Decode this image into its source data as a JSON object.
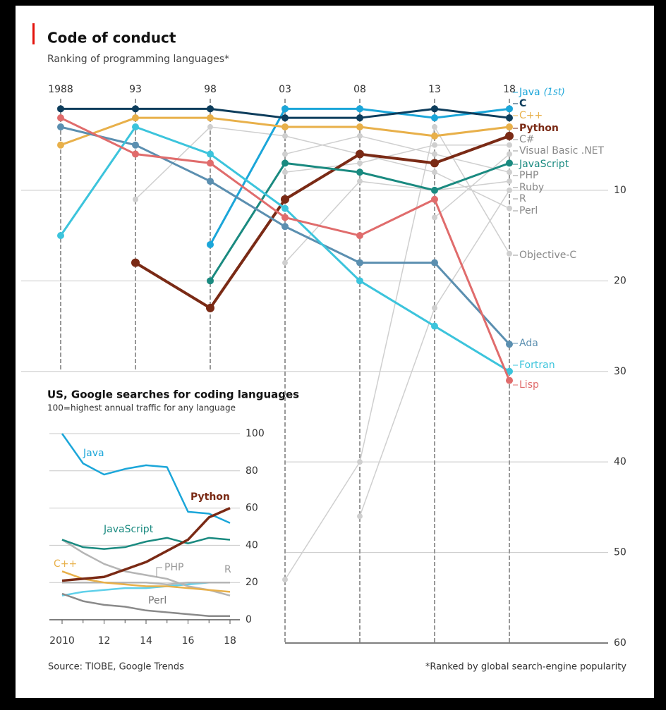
{
  "chart_data": [
    {
      "type": "line",
      "title": "Code of conduct",
      "subtitle": "Ranking of programming languages*",
      "categories": [
        "1988",
        "93",
        "98",
        "03",
        "08",
        "13",
        "18"
      ],
      "ylim": [
        0,
        60
      ],
      "y_inverted": true,
      "yticks": [
        10,
        20,
        30,
        40,
        50,
        60
      ],
      "grid": true,
      "annotations": [
        {
          "text": "(1st)"
        }
      ],
      "series": [
        {
          "name": "Java",
          "color": "#1ba6d9",
          "values": [
            null,
            null,
            16,
            1,
            1,
            2,
            1
          ]
        },
        {
          "name": "C",
          "color": "#0d3d5c",
          "values": [
            1,
            1,
            1,
            2,
            2,
            1,
            2
          ]
        },
        {
          "name": "C++",
          "color": "#e8b04a",
          "values": [
            5,
            2,
            2,
            3,
            3,
            4,
            3
          ]
        },
        {
          "name": "Python",
          "color": "#7a2a15",
          "values": [
            null,
            18,
            23,
            11,
            6,
            7,
            4
          ]
        },
        {
          "name": "C#",
          "color": "#cfcfcf",
          "values": [
            null,
            null,
            null,
            8,
            7,
            5,
            5
          ]
        },
        {
          "name": "Visual Basic .NET",
          "color": "#cfcfcf",
          "values": [
            null,
            null,
            null,
            null,
            null,
            13,
            6
          ]
        },
        {
          "name": "JavaScript",
          "color": "#1a8a80",
          "values": [
            null,
            null,
            20,
            7,
            8,
            10,
            7
          ]
        },
        {
          "name": "PHP",
          "color": "#cfcfcf",
          "values": [
            null,
            null,
            null,
            6,
            4,
            6,
            8
          ]
        },
        {
          "name": "Ruby",
          "color": "#cfcfcf",
          "values": [
            null,
            null,
            null,
            18,
            9,
            10,
            9
          ]
        },
        {
          "name": "R",
          "color": "#cfcfcf",
          "values": [
            null,
            null,
            null,
            null,
            46,
            23,
            10
          ]
        },
        {
          "name": "Perl",
          "color": "#cfcfcf",
          "values": [
            null,
            11,
            3,
            4,
            6,
            8,
            12
          ]
        },
        {
          "name": "Objective-C",
          "color": "#cfcfcf",
          "values": [
            null,
            null,
            null,
            53,
            40,
            3,
            17
          ]
        },
        {
          "name": "Ada",
          "color": "#5b8fb0",
          "values": [
            3,
            5,
            9,
            14,
            18,
            18,
            27
          ]
        },
        {
          "name": "Fortran",
          "color": "#3cc4dc",
          "values": [
            15,
            3,
            6,
            12,
            20,
            25,
            30
          ]
        },
        {
          "name": "Lisp",
          "color": "#e06c6c",
          "values": [
            2,
            6,
            7,
            13,
            15,
            11,
            31
          ]
        }
      ],
      "source": "Source: TIOBE, Google Trends",
      "footnote": "*Ranked by global search-engine popularity"
    },
    {
      "type": "line",
      "title": "US, Google searches for coding languages",
      "subtitle": "100=highest annual traffic for any language",
      "x": [
        2010,
        2011,
        2012,
        2013,
        2014,
        2015,
        2016,
        2017,
        2018
      ],
      "xlim": [
        2010,
        2018
      ],
      "xticks": [
        2010,
        {
          "value": 2012,
          "label": "12"
        },
        {
          "value": 2014,
          "label": "14"
        },
        {
          "value": 2016,
          "label": "16"
        },
        {
          "value": 2018,
          "label": "18"
        }
      ],
      "ylim": [
        0,
        100
      ],
      "yticks": [
        0,
        20,
        40,
        60,
        80,
        100
      ],
      "grid": true,
      "series": [
        {
          "color": "#5fd0ea",
          "values": [
            13,
            15,
            16,
            17,
            17,
            18,
            19,
            20,
            20
          ]
        },
        {
          "name": "Perl",
          "color": "#8a8a8a",
          "values": [
            14,
            10,
            8,
            7,
            5,
            4,
            3,
            2,
            2
          ]
        },
        {
          "name": "R",
          "color": "#b5b5b5",
          "values": [
            20,
            20,
            20,
            20,
            20,
            19,
            20,
            20,
            20
          ]
        },
        {
          "name": "PHP",
          "color": "#b5b5b5",
          "values": [
            43,
            36,
            30,
            26,
            24,
            22,
            18,
            16,
            13
          ]
        },
        {
          "name": "C++",
          "color": "#e8b04a",
          "values": [
            26,
            22,
            20,
            19,
            18,
            18,
            17,
            16,
            15
          ]
        },
        {
          "name": "JavaScript",
          "color": "#1a8a80",
          "values": [
            43,
            39,
            38,
            39,
            42,
            44,
            41,
            44,
            43
          ]
        },
        {
          "name": "Java",
          "color": "#1ba6d9",
          "values": [
            100,
            84,
            78,
            81,
            83,
            82,
            58,
            57,
            52
          ]
        },
        {
          "name": "Python",
          "color": "#7a2a15",
          "values": [
            21,
            22,
            23,
            27,
            31,
            37,
            43,
            55,
            60
          ]
        }
      ]
    }
  ]
}
